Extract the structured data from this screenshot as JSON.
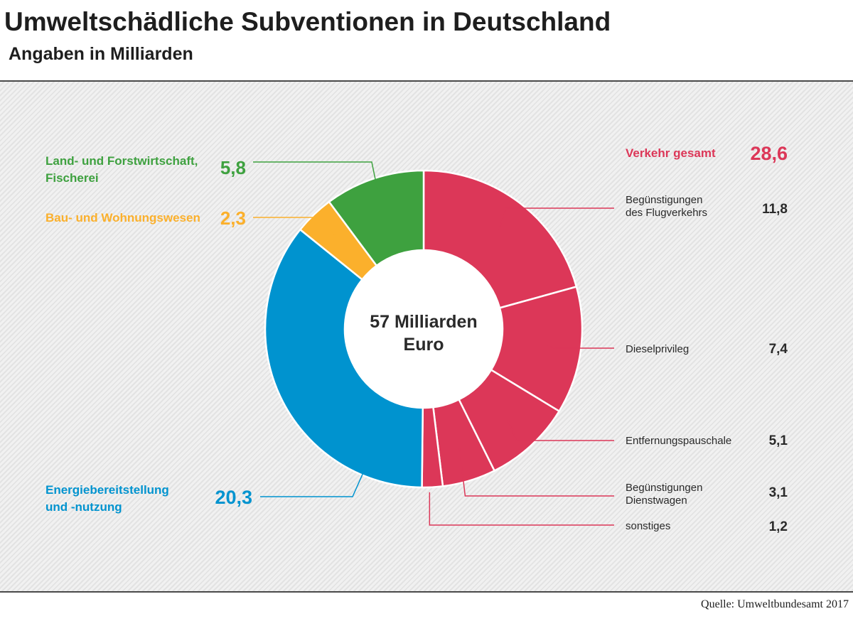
{
  "header": {
    "title": "Umweltschädliche Subventionen in Deutschland",
    "subtitle": "Angaben in Milliarden"
  },
  "footer": {
    "source": "Quelle: Umweltbundesamt 2017"
  },
  "colors": {
    "verkehr": "#dc3758",
    "energie": "#0093cf",
    "bau": "#fbb02c",
    "land": "#3ea13f",
    "text_dark": "#2a2a2a"
  },
  "chart_data": {
    "type": "pie",
    "variant": "donut",
    "center_label": [
      "57 Milliarden",
      "Euro"
    ],
    "total": 57,
    "unit": "Milliarden Euro",
    "groups": [
      {
        "key": "verkehr",
        "label": [
          "Verkehr gesamt"
        ],
        "value": 28.6,
        "value_label": "28,6",
        "items": [
          {
            "label": [
              "Begünstigungen",
              "des Flugverkehrs"
            ],
            "value": 11.8,
            "value_label": "11,8"
          },
          {
            "label": [
              "Dieselprivileg"
            ],
            "value": 7.4,
            "value_label": "7,4"
          },
          {
            "label": [
              "Entfernungspauschale"
            ],
            "value": 5.1,
            "value_label": "5,1"
          },
          {
            "label": [
              "Begünstigungen",
              "Dienstwagen"
            ],
            "value": 3.1,
            "value_label": "3,1"
          },
          {
            "label": [
              "sonstiges"
            ],
            "value": 1.2,
            "value_label": "1,2"
          }
        ]
      },
      {
        "key": "energie",
        "label": [
          "Energiebereitstellung",
          "und -nutzung"
        ],
        "value": 20.3,
        "value_label": "20,3"
      },
      {
        "key": "bau",
        "label": [
          "Bau- und Wohnungswesen"
        ],
        "value": 2.3,
        "value_label": "2,3"
      },
      {
        "key": "land",
        "label": [
          "Land- und Forstwirtschaft,",
          "Fischerei"
        ],
        "value": 5.8,
        "value_label": "5,8"
      }
    ]
  }
}
